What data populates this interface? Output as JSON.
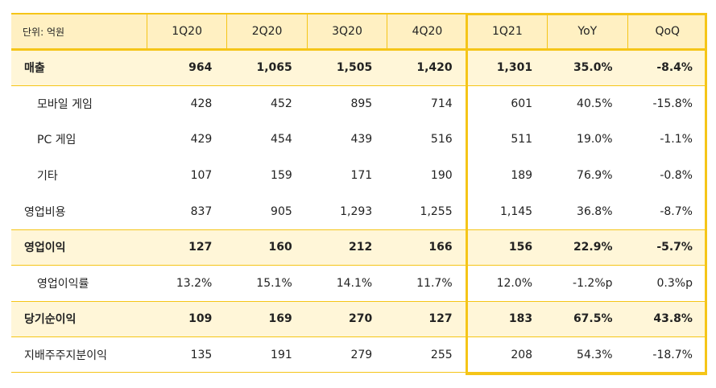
{
  "table": {
    "unit_label": "단위: 억원",
    "columns": [
      "1Q20",
      "2Q20",
      "3Q20",
      "4Q20",
      "1Q21",
      "YoY",
      "QoQ"
    ],
    "rows": [
      {
        "label": "매출",
        "values": [
          "964",
          "1,065",
          "1,505",
          "1,420",
          "1,301",
          "35.0%",
          "-8.4%"
        ]
      },
      {
        "label": "모바일 게임",
        "values": [
          "428",
          "452",
          "895",
          "714",
          "601",
          "40.5%",
          "-15.8%"
        ]
      },
      {
        "label": "PC 게임",
        "values": [
          "429",
          "454",
          "439",
          "516",
          "511",
          "19.0%",
          "-1.1%"
        ]
      },
      {
        "label": "기타",
        "values": [
          "107",
          "159",
          "171",
          "190",
          "189",
          "76.9%",
          "-0.8%"
        ]
      },
      {
        "label": "영업비용",
        "values": [
          "837",
          "905",
          "1,293",
          "1,255",
          "1,145",
          "36.8%",
          "-8.7%"
        ]
      },
      {
        "label": "영업이익",
        "values": [
          "127",
          "160",
          "212",
          "166",
          "156",
          "22.9%",
          "-5.7%"
        ]
      },
      {
        "label": "영업이익률",
        "values": [
          "13.2%",
          "15.1%",
          "14.1%",
          "11.7%",
          "12.0%",
          "-1.2%p",
          "0.3%p"
        ]
      },
      {
        "label": "당기순이익",
        "values": [
          "109",
          "169",
          "270",
          "127",
          "183",
          "67.5%",
          "43.8%"
        ]
      },
      {
        "label": "지배주주지분이익",
        "values": [
          "135",
          "191",
          "279",
          "255",
          "208",
          "54.3%",
          "-18.7%"
        ]
      }
    ]
  },
  "colors": {
    "accent": "#f5c518",
    "header_bg": "#fff0c2",
    "strong_bg": "#fff6d8"
  }
}
